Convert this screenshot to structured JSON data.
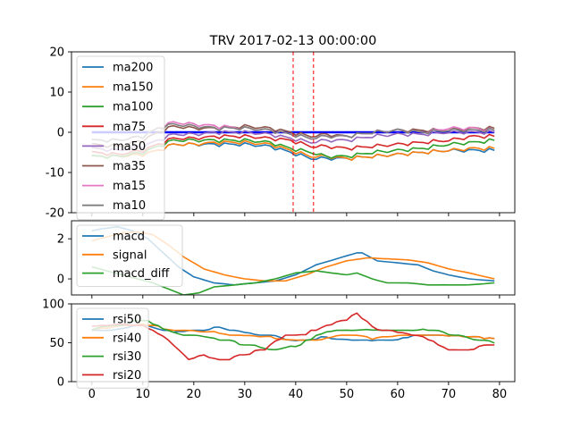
{
  "chart_data": [
    {
      "type": "line",
      "title": "TRV 2017-02-13 00:00:00",
      "ylim": [
        -20,
        20
      ],
      "xlim": [
        -4,
        83
      ],
      "yticks": [
        20,
        10,
        0,
        -10,
        -20
      ],
      "vlines": [
        39.5,
        43.5
      ],
      "hline": {
        "y": 0,
        "from": 0,
        "to": 79,
        "color": "#0000ff"
      },
      "legend": "upper left",
      "series": [
        {
          "name": "ma200",
          "color": "#1f77b4"
        },
        {
          "name": "ma150",
          "color": "#ff7f0e"
        },
        {
          "name": "ma100",
          "color": "#2ca02c"
        },
        {
          "name": "ma75",
          "color": "#d62728"
        },
        {
          "name": "ma50",
          "color": "#9467bd"
        },
        {
          "name": "ma35",
          "color": "#8c564b"
        },
        {
          "name": "ma15",
          "color": "#e377c2"
        },
        {
          "name": "ma10",
          "color": "#7f7f7f"
        }
      ],
      "curves": {
        "x": [
          0,
          5,
          10,
          13,
          16,
          20,
          25,
          30,
          35,
          39,
          43,
          46,
          50,
          55,
          60,
          65,
          70,
          75,
          79
        ],
        "ma200": [
          -6,
          -6,
          -5.5,
          -4.5,
          -3,
          -3,
          -3,
          -3,
          -3.5,
          -5,
          -6.5,
          -6.5,
          -6.5,
          -6,
          -5.5,
          -5,
          -4.5,
          -4.5,
          -4.5
        ],
        "ma150": [
          -6,
          -6,
          -5.5,
          -4.5,
          -3,
          -3,
          -2.5,
          -2.5,
          -3,
          -4.5,
          -6,
          -6,
          -6.5,
          -6,
          -5.5,
          -5,
          -4.5,
          -4,
          -4
        ],
        "ma100": [
          -6,
          -6,
          -5,
          -3.5,
          -2,
          -2,
          -2,
          -2,
          -2.5,
          -4,
          -5,
          -6,
          -6,
          -5,
          -4.5,
          -4,
          -3,
          -2.5,
          -2
        ],
        "ma75": [
          -5,
          -5.5,
          -4.5,
          -3,
          -1.5,
          -1.5,
          -1,
          -1,
          -1.5,
          -2,
          -3.5,
          -3.5,
          -4,
          -3.5,
          -3,
          -2.5,
          -2,
          -1,
          -1
        ],
        "ma50": [
          -4,
          -4.5,
          -3.5,
          -2,
          -0.5,
          -0.5,
          0,
          0,
          -0.5,
          -1.5,
          -2.5,
          -2,
          -2,
          -1,
          -0.5,
          -0.5,
          0,
          0,
          0
        ],
        "ma35": [
          -3,
          -3.5,
          -2,
          0,
          1.5,
          1,
          1,
          1.5,
          1,
          0,
          -1,
          -0.5,
          -1,
          0,
          0.5,
          0.5,
          0.5,
          1,
          1
        ],
        "ma15": [
          -2,
          -2,
          -1,
          1,
          2.5,
          2,
          1.5,
          1,
          0.5,
          -0.5,
          -1.5,
          -1,
          -1,
          0,
          0.5,
          0,
          1,
          1,
          0.5
        ],
        "ma10": [
          -2,
          -2,
          -1,
          1,
          2,
          1.5,
          1,
          1,
          0.5,
          -0.5,
          -1.5,
          -1,
          -1,
          0,
          0.5,
          0,
          0.5,
          0.5,
          0.5
        ]
      }
    },
    {
      "type": "line",
      "ylim": [
        -0.8,
        2.9
      ],
      "yticks": [
        2,
        0
      ],
      "legend": "upper left",
      "series": [
        {
          "name": "macd",
          "color": "#1f77b4",
          "x": [
            0,
            2,
            5,
            8,
            11,
            14,
            17,
            20,
            24,
            28,
            32,
            36,
            40,
            44,
            48,
            52,
            53,
            56,
            60,
            64,
            67,
            70,
            74,
            79
          ],
          "values": [
            2.4,
            2.5,
            2.6,
            2.4,
            2.0,
            1.3,
            0.6,
            0.1,
            -0.2,
            -0.3,
            -0.2,
            -0.1,
            0.2,
            0.7,
            1.0,
            1.3,
            1.3,
            0.9,
            0.8,
            0.7,
            0.4,
            0.2,
            0.0,
            -0.1
          ]
        },
        {
          "name": "signal",
          "color": "#ff7f0e",
          "x": [
            0,
            3,
            6,
            9,
            12,
            15,
            18,
            22,
            26,
            30,
            34,
            38,
            42,
            46,
            50,
            54,
            58,
            62,
            66,
            70,
            74,
            79
          ],
          "values": [
            1.9,
            2.1,
            2.3,
            2.35,
            2.2,
            1.7,
            1.1,
            0.5,
            0.2,
            0.0,
            -0.1,
            -0.1,
            0.2,
            0.6,
            0.9,
            1.05,
            1.0,
            0.95,
            0.8,
            0.5,
            0.3,
            0.0
          ]
        },
        {
          "name": "macd_diff",
          "color": "#2ca02c",
          "x": [
            0,
            3,
            6,
            9,
            12,
            15,
            18,
            21,
            24,
            28,
            32,
            36,
            40,
            44,
            47,
            50,
            52,
            55,
            58,
            62,
            66,
            70,
            74,
            79
          ],
          "values": [
            0.6,
            0.4,
            0.2,
            0.0,
            -0.2,
            -0.5,
            -0.8,
            -0.7,
            -0.4,
            -0.3,
            -0.2,
            0.0,
            0.3,
            0.4,
            0.3,
            0.2,
            0.3,
            0.0,
            -0.2,
            -0.2,
            -0.3,
            -0.3,
            -0.3,
            -0.2
          ]
        }
      ]
    },
    {
      "type": "line",
      "ylim": [
        0,
        100
      ],
      "yticks": [
        100,
        50,
        0
      ],
      "xticks": [
        0,
        10,
        20,
        30,
        40,
        50,
        60,
        70,
        80
      ],
      "legend": "upper left",
      "series": [
        {
          "name": "rsi50",
          "color": "#1f77b4",
          "x": [
            0,
            5,
            10,
            13,
            16,
            20,
            25,
            30,
            35,
            40,
            45,
            50,
            55,
            60,
            65,
            70,
            75,
            79
          ],
          "values": [
            65,
            68,
            72,
            68,
            63,
            65,
            70,
            63,
            60,
            52,
            57,
            55,
            52,
            55,
            60,
            58,
            57,
            56
          ]
        },
        {
          "name": "rsi40",
          "color": "#ff7f0e",
          "x": [
            0,
            5,
            10,
            13,
            16,
            20,
            25,
            30,
            35,
            40,
            45,
            50,
            55,
            60,
            65,
            70,
            75,
            79
          ],
          "values": [
            68,
            70,
            75,
            70,
            67,
            64,
            63,
            58,
            57,
            54,
            55,
            60,
            56,
            58,
            60,
            58,
            57,
            56
          ]
        },
        {
          "name": "rsi30",
          "color": "#2ca02c",
          "x": [
            0,
            5,
            10,
            13,
            16,
            20,
            25,
            30,
            35,
            40,
            45,
            50,
            55,
            60,
            65,
            70,
            75,
            79
          ],
          "values": [
            68,
            72,
            80,
            72,
            63,
            59,
            55,
            48,
            42,
            45,
            62,
            67,
            68,
            65,
            68,
            62,
            55,
            50
          ]
        },
        {
          "name": "rsi20",
          "color": "#d62728",
          "x": [
            0,
            5,
            10,
            13,
            16,
            19,
            22,
            26,
            30,
            34,
            38,
            42,
            46,
            50,
            52,
            55,
            58,
            62,
            66,
            70,
            74,
            79
          ],
          "values": [
            70,
            75,
            72,
            62,
            48,
            30,
            33,
            28,
            35,
            42,
            60,
            62,
            72,
            80,
            88,
            70,
            65,
            62,
            55,
            40,
            42,
            48
          ]
        }
      ]
    }
  ]
}
